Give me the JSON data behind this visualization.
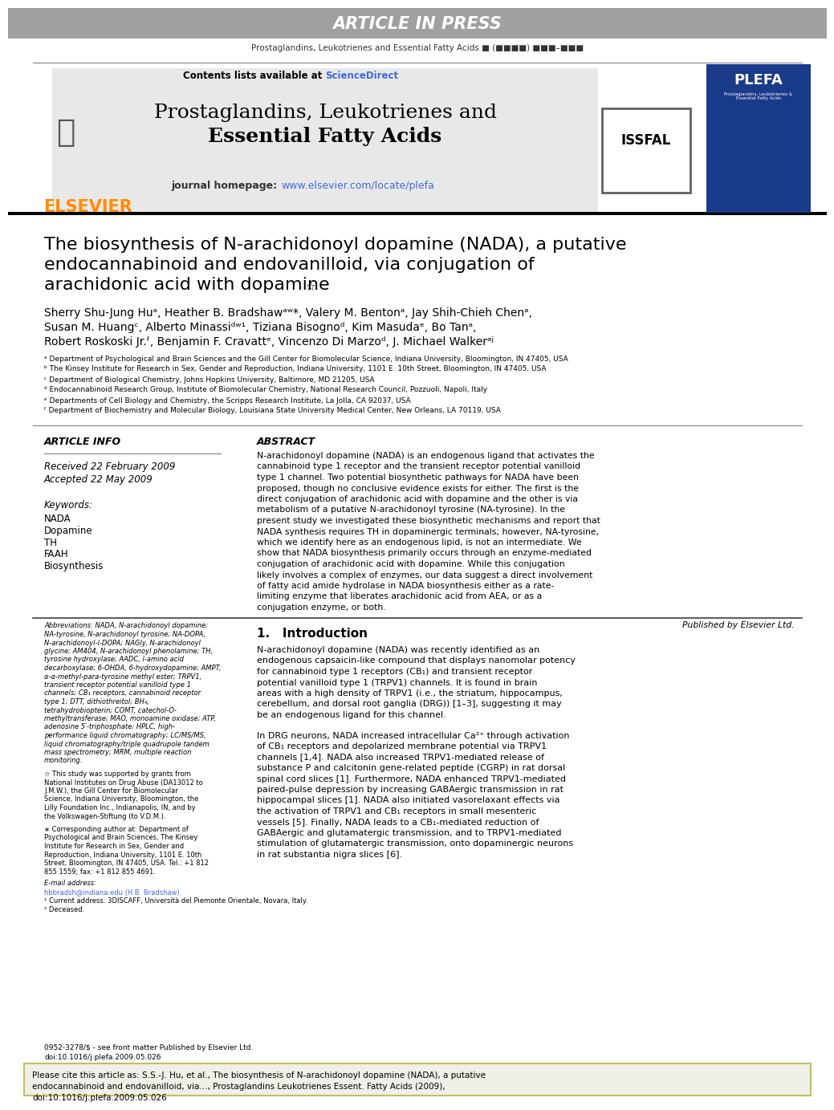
{
  "article_in_press_bg": "#b0b0b0",
  "article_in_press_text": "ARTICLE IN PRESS",
  "journal_citation": "Prostaglandins, Leukotrienes and Essential Fatty Acids ■ (■■■■) ■■■–■■■",
  "contents_text": "Contents lists available at ScienceDirect",
  "journal_title_line1": "Prostaglandins, Leukotrienes and",
  "journal_title_line2": "Essential Fatty Acids",
  "journal_homepage": "journal homepage: www.elsevier.com/locate/plefa",
  "elsevier_color": "#FF8C00",
  "sciencedirect_color": "#4169E1",
  "homepage_link_color": "#4169E1",
  "paper_title_line1": "The biosynthesis of N-arachidonoyl dopamine (NADA), a putative",
  "paper_title_line2": "endocannabinoid and endovanilloid, via conjugation of",
  "paper_title_line3": "arachidonic acid with dopamine",
  "authors_line1": "Sherry Shu-Jung Huᵃ, Heather B. Bradshawᵃʷ*, Valery M. Bentonᵃ, Jay Shih-Chieh Chenᵃ,",
  "authors_line2": "Susan M. Huangᶜ, Alberto Minassiᵈʷ¹, Tiziana Bisognoᵈ, Kim Masudaᵉ, Bo Tanᵃ,",
  "authors_line3": "Robert Roskoski Jr.ᶠ, Benjamin F. Cravattᵉ, Vincenzo Di Marzoᵈ, J. Michael Walkerᵃʲ",
  "affil_a": "ᵃ Department of Psychological and Brain Sciences and the Gill Center for Biomolecular Science, Indiana University, Bloomington, IN 47405, USA",
  "affil_b": "ᵇ The Kinsey Institute for Research in Sex, Gender and Reproduction, Indiana University, 1101 E. 10th Street, Bloomington, IN 47405, USA",
  "affil_c": "ᶜ Department of Biological Chemistry, Johns Hopkins University, Baltimore, MD 21205, USA",
  "affil_d": "ᵈ Endocannabinoid Research Group, Institute of Biomolecular Chemistry, National Research Council, Pozzuoli, Napoli, Italy",
  "affil_e": "ᵉ Departments of Cell Biology and Chemistry, the Scripps Research Institute, La Jolla, CA 92037, USA",
  "affil_f": "ᶠ Department of Biochemistry and Molecular Biology, Louisiana State University Medical Center, New Orleans, LA 70119, USA",
  "article_info_label": "ARTICLE INFO",
  "abstract_label": "ABSTRACT",
  "received": "Received 22 February 2009",
  "accepted": "Accepted 22 May 2009",
  "keywords_label": "Keywords:",
  "keywords": [
    "NADA",
    "Dopamine",
    "TH",
    "FAAH",
    "Biosynthesis"
  ],
  "abstract_text": "N-arachidonoyl dopamine (NADA) is an endogenous ligand that activates the cannabinoid type 1 receptor and the transient receptor potential vanilloid type 1 channel. Two potential biosynthetic pathways for NADA have been proposed, though no conclusive evidence exists for either. The first is the direct conjugation of arachidonic acid with dopamine and the other is via metabolism of a putative N-arachidonoyl tyrosine (NA-tyrosine). In the present study we investigated these biosynthetic mechanisms and report that NADA synthesis requires TH in dopaminergic terminals; however, NA-tyrosine, which we identify here as an endogenous lipid, is not an intermediate. We show that NADA biosynthesis primarily occurs through an enzyme-mediated conjugation of arachidonic acid with dopamine. While this conjugation likely involves a complex of enzymes, our data suggest a direct involvement of fatty acid amide hydrolase in NADA biosynthesis either as a rate-limiting enzyme that liberates arachidonic acid from AEA, or as a conjugation enzyme, or both.",
  "published_by": "Published by Elsevier Ltd.",
  "intro_header": "1.   Introduction",
  "intro_text1": "N-arachidonoyl dopamine (NADA) was recently identified as an endogenous capsaicin-like compound that displays nanomolar potency for cannabinoid type 1 receptors (CB₁) and transient receptor potential vanilloid type 1 (TRPV1) channels. It is found in brain areas with a high density of TRPV1 (i.e., the striatum, hippocampus, cerebellum, and dorsal root ganglia (DRG)) [1–3], suggesting it may be an endogenous ligand for this channel.",
  "intro_text2": "In DRG neurons, NADA increased intracellular Ca²⁺ through activation of CB₁ receptors and depolarized membrane potential via TRPV1 channels [1,4]. NADA also increased TRPV1-mediated release of substance P and calcitonin gene-related peptide (CGRP) in rat dorsal spinal cord slices [1]. Furthermore, NADA enhanced TRPV1-mediated paired-pulse depression by increasing GABAergic transmission in rat hippocampal slices [1]. NADA also initiated vasorelaxant effects via the activation of TRPV1 and CB₁ receptors in small mesenteric vessels [5]. Finally, NADA leads to a CB₁-mediated reduction of GABAergic and glutamatergic transmission, and to TRPV1-mediated stimulation of glutamatergic transmission, onto dopaminergic neurons in rat substantia nigra slices [6].",
  "footnote_abbrev": "Abbreviations: NADA, N-arachidonoyl dopamine; NA-tyrosine, N-arachidonoyl tyrosine; NA-DOPA, N-arachidonoyl-l-DOPA; NAGly, N-arachidonoyl glycine; AM404, N-arachidonoyl phenolamine; TH, tyrosine hydroxylase; AADC, l-amino acid decarboxylase; 6-OHDA, 6-hydroxydopamine; AMPT, α-α-methyl-para-tyrosine methyl ester; TRPV1, transient receptor potential vanilloid type 1 channels; CB₁ receptors, cannabinoid receptor type 1; DTT, dithiothreitol; BH₄, tetrahydrobiopterin; COMT, catechol-O-methyltransferase; MAO, monoamine oxidase; ATP, adenosine 5′-triphosphate; HPLC, high-performance liquid chromatography; LC/MS/MS, liquid chromatography/triple quadrupole tandem mass spectrometry; MRM, multiple reaction monitoring.",
  "footnote_grant": "☆ This study was supported by grants from National Institutes on Drug Abuse (DA13012 to J.M.W.), the Gill Center for Biomolecular Science, Indiana University, Bloomington, the Lilly Foundation Inc., Indianapolis, IN, and by the Volkswagen-Stiftung (to V.D.M.).",
  "footnote_corr": "∗ Corresponding author at: Department of Psychological and Brain Sciences, The Kinsey Institute for Research in Sex, Gender and Reproduction, Indiana University, 1101 E. 10th Street, Bloomington, IN 47405, USA. Tel.: +1 812 855 1559; fax: +1 812 855 4691.",
  "footnote_email": "E-mail address:",
  "footnote_email2": "hbbradsh@indiana.edu (H.B. Bradshaw).",
  "footnote_1": "¹ Current address: 3DISCAFF, Università del Piemonte Orientale, Novara, Italy.",
  "footnote_2": "² Deceased.",
  "doi_text": "0952-3278/$ - see front matter Published by Elsevier Ltd.",
  "doi": "doi:10.1016/j.plefa.2009.05.026",
  "cite_box": "Please cite this article as: S.S.-J. Hu, et al., The biosynthesis of N-arachidonoyl dopamine (NADA), a putative endocannabinoid and endovanilloid, via..., Prostaglandins Leukotrienes Essent. Fatty Acids (2009), doi:10.1016/j.plefa.2009.05.026",
  "bg_color": "#ffffff",
  "text_color": "#000000",
  "header_bar_color": "#a0a0a0",
  "journal_header_bg": "#e8e8e8",
  "cite_box_bg": "#f0f0e8",
  "cite_box_border": "#c8c800",
  "bottom_bar_color": "#000000"
}
